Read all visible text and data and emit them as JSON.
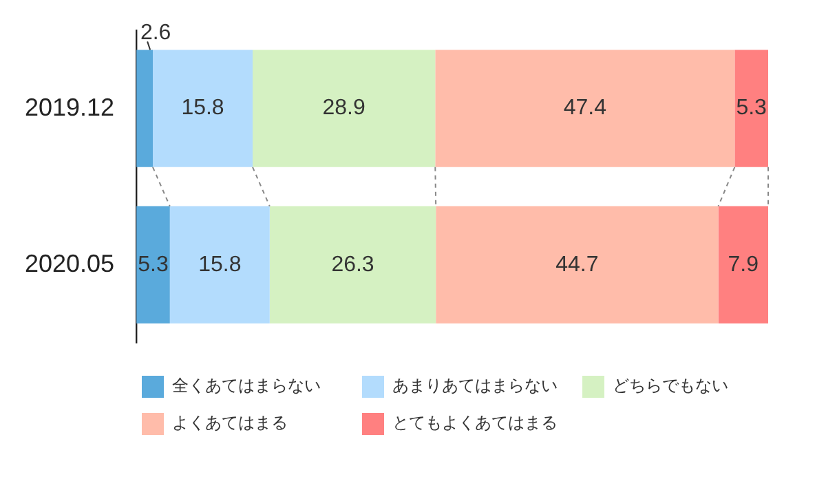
{
  "chart_data": {
    "type": "bar",
    "orientation": "horizontal",
    "stacked": true,
    "data_labels": true,
    "legend": "bottom",
    "tick_labels": "y",
    "categories": [
      "2019.12",
      "2020.05"
    ],
    "series": [
      {
        "name": "全くあてはまらない",
        "color": "#5aaadc",
        "values": [
          2.6,
          5.3
        ]
      },
      {
        "name": "あまりあてはまらない",
        "color": "#b3dcfd",
        "values": [
          15.8,
          15.8
        ]
      },
      {
        "name": "どちらでもない",
        "color": "#d5f1c2",
        "values": [
          28.9,
          26.3
        ]
      },
      {
        "name": "よくあてはまる",
        "color": "#ffbcaa",
        "values": [
          47.4,
          44.7
        ]
      },
      {
        "name": "とてもよくあてはまる",
        "color": "#ff8080",
        "values": [
          5.3,
          7.9
        ]
      }
    ]
  }
}
